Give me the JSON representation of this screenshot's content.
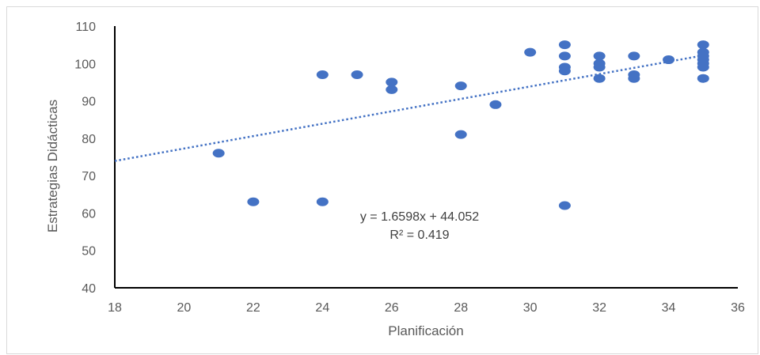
{
  "chart_data": {
    "type": "scatter",
    "xlabel": "Planificación",
    "ylabel": "Estrategias Didácticas",
    "xlim": [
      18,
      36
    ],
    "ylim": [
      40,
      110
    ],
    "xticks": [
      18,
      20,
      22,
      24,
      26,
      28,
      30,
      32,
      34,
      36
    ],
    "yticks": [
      40,
      50,
      60,
      70,
      80,
      90,
      100,
      110
    ],
    "grid": false,
    "legend": "none",
    "marker_color": "#4472C4",
    "trendline": {
      "type": "linear",
      "slope": 1.6598,
      "intercept": 44.052,
      "style": "dotted",
      "color": "#4472C4",
      "equation_label": "y = 1.6598x + 44.052",
      "r2_label": "R² = 0.419"
    },
    "points": [
      {
        "x": 21,
        "y": 76
      },
      {
        "x": 22,
        "y": 63
      },
      {
        "x": 24,
        "y": 97
      },
      {
        "x": 24,
        "y": 63
      },
      {
        "x": 25,
        "y": 97
      },
      {
        "x": 26,
        "y": 95
      },
      {
        "x": 26,
        "y": 93
      },
      {
        "x": 28,
        "y": 94
      },
      {
        "x": 28,
        "y": 81
      },
      {
        "x": 29,
        "y": 89
      },
      {
        "x": 30,
        "y": 103
      },
      {
        "x": 31,
        "y": 105
      },
      {
        "x": 31,
        "y": 102
      },
      {
        "x": 31,
        "y": 99
      },
      {
        "x": 31,
        "y": 98
      },
      {
        "x": 31,
        "y": 62
      },
      {
        "x": 32,
        "y": 102
      },
      {
        "x": 32,
        "y": 100
      },
      {
        "x": 32,
        "y": 99
      },
      {
        "x": 32,
        "y": 96
      },
      {
        "x": 33,
        "y": 102
      },
      {
        "x": 33,
        "y": 97
      },
      {
        "x": 33,
        "y": 96
      },
      {
        "x": 34,
        "y": 101
      },
      {
        "x": 35,
        "y": 105
      },
      {
        "x": 35,
        "y": 103
      },
      {
        "x": 35,
        "y": 102
      },
      {
        "x": 35,
        "y": 101
      },
      {
        "x": 35,
        "y": 100
      },
      {
        "x": 35,
        "y": 99
      },
      {
        "x": 35,
        "y": 96
      }
    ]
  }
}
